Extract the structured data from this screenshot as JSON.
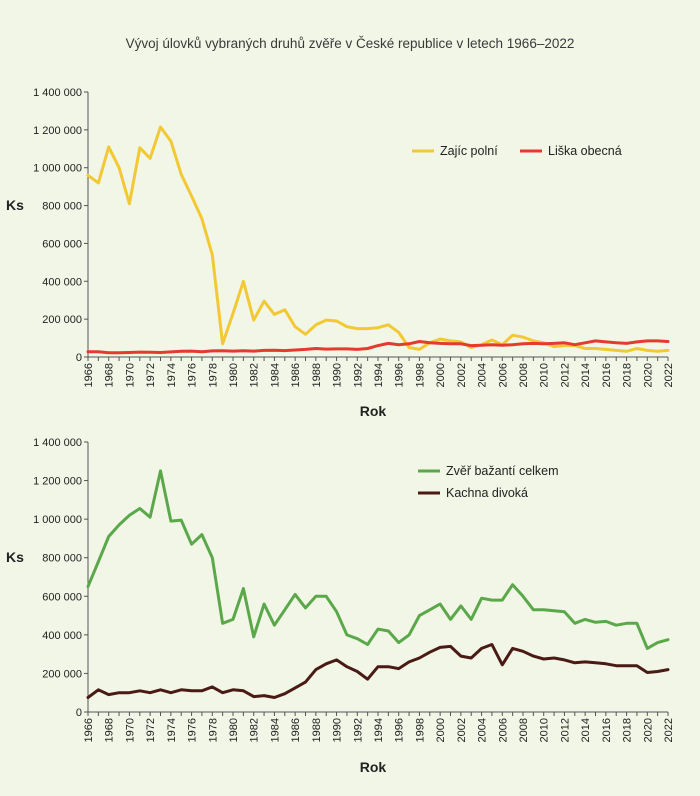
{
  "page": {
    "title": "Vývoj úlovků vybraných druhů zvěře v České republice v letech 1966–2022",
    "background": "#f1f6e6"
  },
  "chart_data": [
    {
      "type": "line",
      "xlabel": "Rok",
      "ylabel": "Ks",
      "ylim": [
        0,
        1400000
      ],
      "yticks": [
        "0",
        "200 000",
        "400 000",
        "600 000",
        "800 000",
        "1 000 000",
        "1 200 000",
        "1 400 000"
      ],
      "xlim": [
        1966,
        2022
      ],
      "xticks": [
        "1966",
        "1968",
        "1970",
        "1972",
        "1974",
        "1976",
        "1978",
        "1980",
        "1982",
        "1984",
        "1986",
        "1988",
        "1990",
        "1992",
        "1994",
        "1996",
        "1998",
        "2000",
        "2002",
        "2004",
        "2006",
        "2008",
        "2010",
        "2012",
        "2014",
        "2016",
        "2018",
        "2020",
        "2022"
      ],
      "grid": false,
      "legend": "top-right",
      "x": [
        1966,
        1967,
        1968,
        1969,
        1970,
        1971,
        1972,
        1973,
        1974,
        1975,
        1976,
        1977,
        1978,
        1979,
        1980,
        1981,
        1982,
        1983,
        1984,
        1985,
        1986,
        1987,
        1988,
        1989,
        1990,
        1991,
        1992,
        1993,
        1994,
        1995,
        1996,
        1997,
        1998,
        1999,
        2000,
        2001,
        2002,
        2003,
        2004,
        2005,
        2006,
        2007,
        2008,
        2009,
        2010,
        2011,
        2012,
        2013,
        2014,
        2015,
        2016,
        2017,
        2018,
        2019,
        2020,
        2021,
        2022
      ],
      "series": [
        {
          "name": "Zajíc polní",
          "color": "#f2c935",
          "values": [
            960000,
            920000,
            1110000,
            1000000,
            810000,
            1105000,
            1050000,
            1215000,
            1140000,
            965000,
            850000,
            730000,
            540000,
            70000,
            230000,
            400000,
            195000,
            295000,
            225000,
            250000,
            160000,
            120000,
            170000,
            195000,
            190000,
            160000,
            150000,
            150000,
            155000,
            170000,
            130000,
            50000,
            40000,
            75000,
            95000,
            85000,
            80000,
            50000,
            65000,
            90000,
            65000,
            115000,
            105000,
            85000,
            75000,
            55000,
            60000,
            60000,
            45000,
            45000,
            40000,
            35000,
            30000,
            45000,
            35000,
            30000,
            35000
          ]
        },
        {
          "name": "Liška obecná",
          "color": "#e53a2f",
          "values": [
            28000,
            28000,
            22000,
            22000,
            24000,
            26000,
            25000,
            24000,
            27000,
            30000,
            31000,
            28000,
            32000,
            33000,
            31000,
            33000,
            31000,
            35000,
            36000,
            34000,
            37000,
            40000,
            45000,
            42000,
            43000,
            43000,
            40000,
            45000,
            60000,
            72000,
            65000,
            70000,
            82000,
            75000,
            72000,
            70000,
            70000,
            60000,
            62000,
            65000,
            62000,
            65000,
            70000,
            72000,
            70000,
            72000,
            75000,
            65000,
            75000,
            85000,
            80000,
            75000,
            72000,
            80000,
            85000,
            85000,
            82000
          ]
        }
      ]
    },
    {
      "type": "line",
      "xlabel": "Rok",
      "ylabel": "Ks",
      "ylim": [
        0,
        1400000
      ],
      "yticks": [
        "0",
        "200 000",
        "400 000",
        "600 000",
        "800 000",
        "1 000 000",
        "1 200 000",
        "1 400 000"
      ],
      "xlim": [
        1966,
        2022
      ],
      "xticks": [
        "1966",
        "1968",
        "1970",
        "1972",
        "1974",
        "1976",
        "1978",
        "1980",
        "1982",
        "1984",
        "1986",
        "1988",
        "1990",
        "1992",
        "1994",
        "1996",
        "1998",
        "2000",
        "2002",
        "2004",
        "2006",
        "2008",
        "2010",
        "2012",
        "2014",
        "2016",
        "2018",
        "2020",
        "2022"
      ],
      "grid": false,
      "legend": "top-right",
      "x": [
        1966,
        1967,
        1968,
        1969,
        1970,
        1971,
        1972,
        1973,
        1974,
        1975,
        1976,
        1977,
        1978,
        1979,
        1980,
        1981,
        1982,
        1983,
        1984,
        1985,
        1986,
        1987,
        1988,
        1989,
        1990,
        1991,
        1992,
        1993,
        1994,
        1995,
        1996,
        1997,
        1998,
        1999,
        2000,
        2001,
        2002,
        2003,
        2004,
        2005,
        2006,
        2007,
        2008,
        2009,
        2010,
        2011,
        2012,
        2013,
        2014,
        2015,
        2016,
        2017,
        2018,
        2019,
        2020,
        2021,
        2022
      ],
      "series": [
        {
          "name": "Zvěř bažantí celkem",
          "color": "#5aa84a",
          "values": [
            650000,
            780000,
            910000,
            970000,
            1020000,
            1055000,
            1010000,
            1250000,
            990000,
            995000,
            870000,
            920000,
            800000,
            460000,
            480000,
            640000,
            390000,
            560000,
            450000,
            530000,
            610000,
            540000,
            600000,
            600000,
            520000,
            400000,
            380000,
            350000,
            430000,
            420000,
            360000,
            400000,
            500000,
            530000,
            560000,
            480000,
            550000,
            480000,
            590000,
            580000,
            580000,
            660000,
            600000,
            530000,
            530000,
            525000,
            520000,
            460000,
            480000,
            465000,
            470000,
            450000,
            460000,
            460000,
            330000,
            360000,
            375000
          ]
        },
        {
          "name": "Kachna divoká",
          "color": "#4a1a14",
          "values": [
            75000,
            115000,
            90000,
            100000,
            100000,
            110000,
            100000,
            115000,
            100000,
            115000,
            110000,
            110000,
            130000,
            100000,
            115000,
            110000,
            80000,
            85000,
            75000,
            95000,
            125000,
            155000,
            220000,
            250000,
            270000,
            235000,
            210000,
            170000,
            235000,
            235000,
            225000,
            260000,
            280000,
            310000,
            335000,
            340000,
            290000,
            280000,
            330000,
            350000,
            245000,
            330000,
            315000,
            290000,
            275000,
            280000,
            270000,
            255000,
            260000,
            255000,
            250000,
            240000,
            240000,
            240000,
            205000,
            210000,
            220000
          ]
        }
      ]
    }
  ]
}
